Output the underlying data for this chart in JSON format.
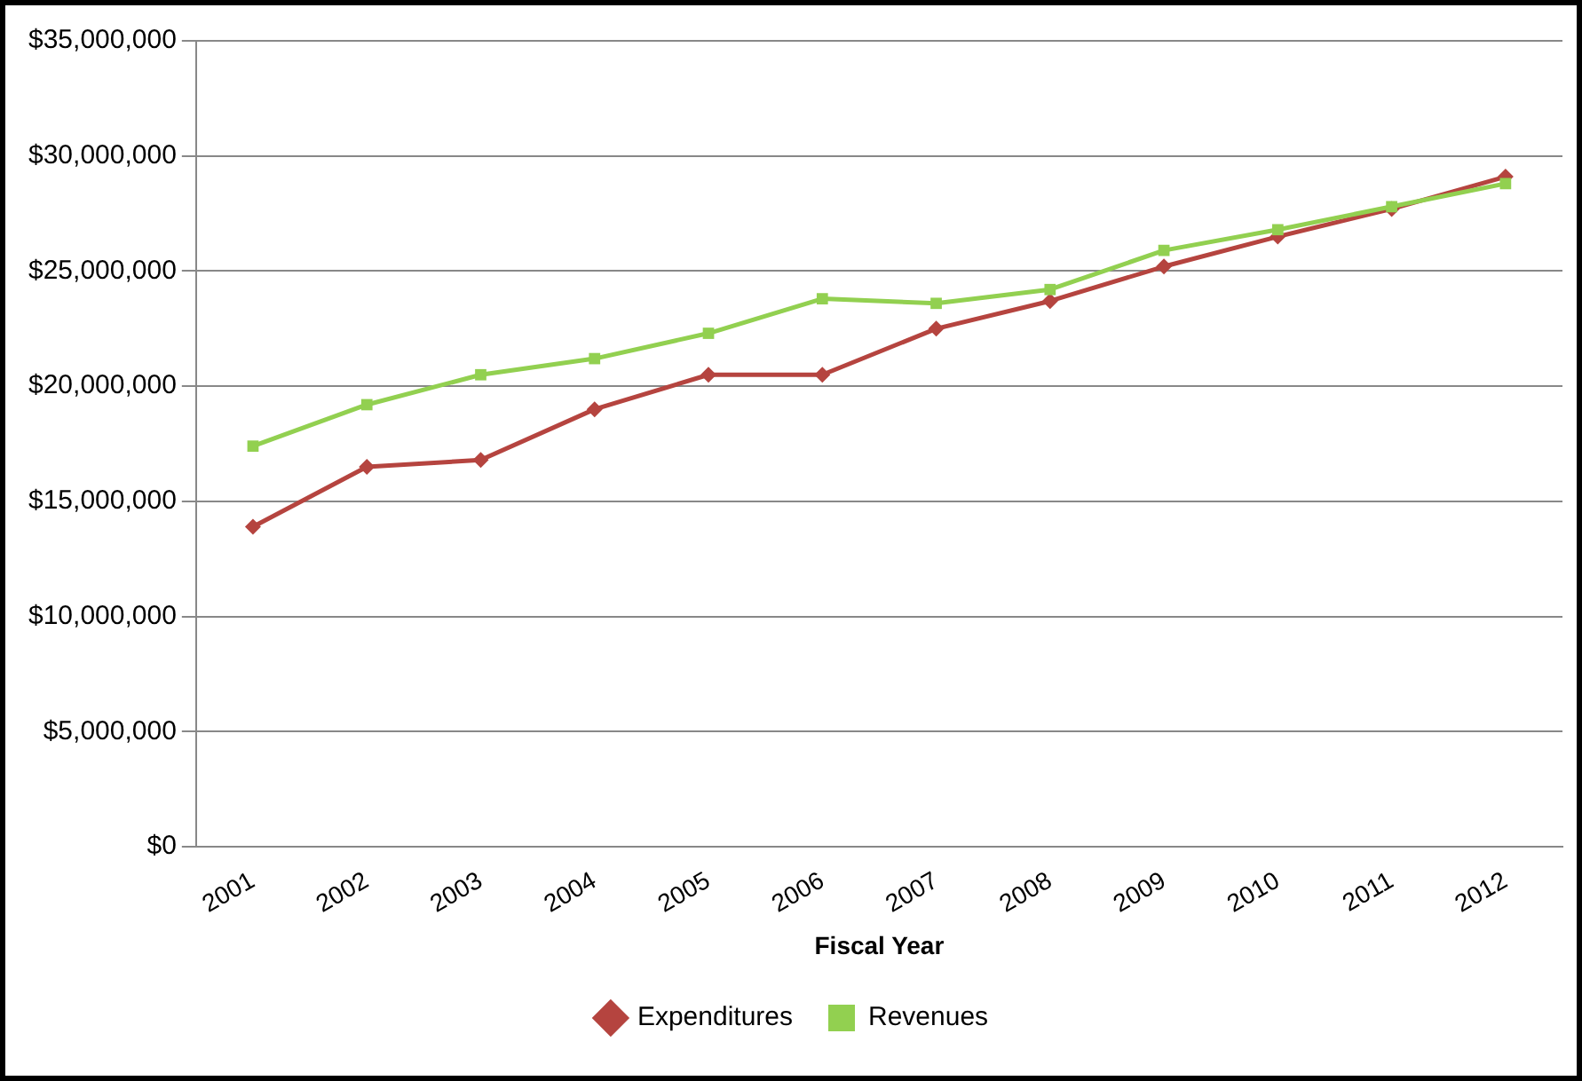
{
  "chart_data": {
    "type": "line",
    "xlabel": "Fiscal Year",
    "categories": [
      "2001",
      "2002",
      "2003",
      "2004",
      "2005",
      "2006",
      "2007",
      "2008",
      "2009",
      "2010",
      "2011",
      "2012"
    ],
    "series": [
      {
        "name": "Expenditures",
        "color": "#b5443f",
        "marker": "diamond",
        "values": [
          13900000,
          16500000,
          16800000,
          19000000,
          20500000,
          20500000,
          22500000,
          23700000,
          25200000,
          26500000,
          27700000,
          29100000
        ]
      },
      {
        "name": "Revenues",
        "color": "#92d050",
        "marker": "square",
        "values": [
          17400000,
          19200000,
          20500000,
          21200000,
          22300000,
          23800000,
          23600000,
          24200000,
          25900000,
          26800000,
          27800000,
          28800000
        ]
      }
    ],
    "ylim": [
      0,
      35000000
    ],
    "yticks": [
      {
        "value": 0,
        "label": "$0"
      },
      {
        "value": 5000000,
        "label": "$5,000,000"
      },
      {
        "value": 10000000,
        "label": "$10,000,000"
      },
      {
        "value": 15000000,
        "label": "$15,000,000"
      },
      {
        "value": 20000000,
        "label": "$20,000,000"
      },
      {
        "value": 25000000,
        "label": "$25,000,000"
      },
      {
        "value": 30000000,
        "label": "$30,000,000"
      },
      {
        "value": 35000000,
        "label": "$35,000,000"
      }
    ],
    "grid": "y",
    "legend": "bottom",
    "line_style": "solid"
  }
}
